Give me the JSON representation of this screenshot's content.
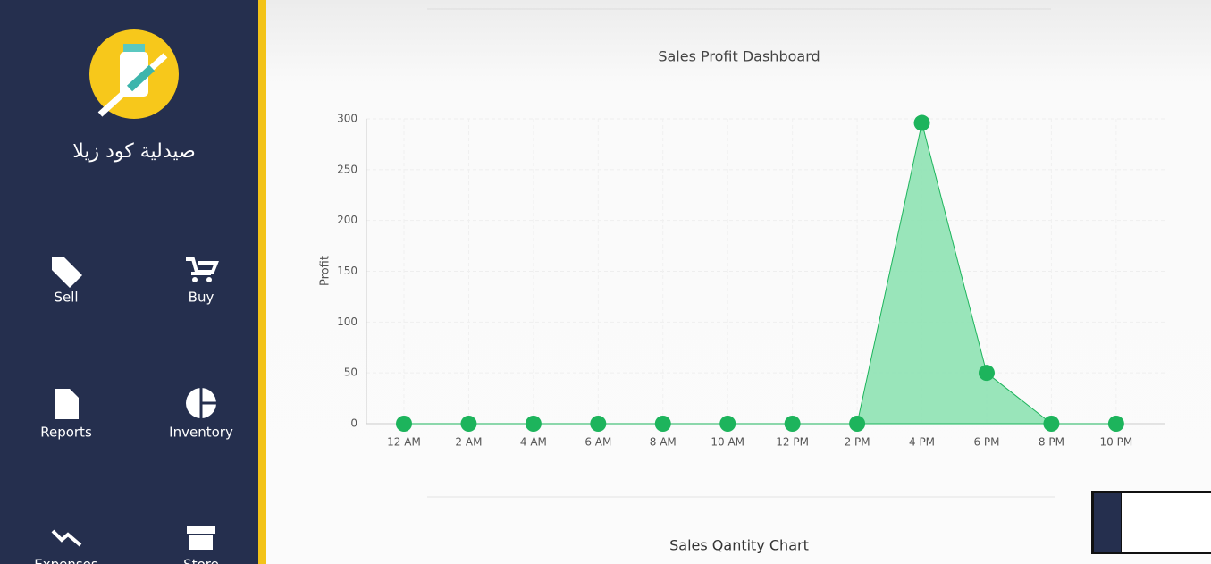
{
  "sidebar": {
    "pharmacy_name": "صيدلية كود زيلا",
    "menu": [
      "Sell",
      "Buy",
      "Reports",
      "Inventory",
      "Expenses",
      "Store"
    ]
  },
  "chart_data": {
    "type": "area",
    "title": "Sales Profit Dashboard",
    "y_label": "Profit",
    "categories": [
      "12 AM",
      "2 AM",
      "4 AM",
      "6 AM",
      "8 AM",
      "10 AM",
      "12 PM",
      "2 PM",
      "4 PM",
      "6 PM",
      "8 PM",
      "10 PM"
    ],
    "values": [
      0,
      0,
      0,
      0,
      0,
      0,
      0,
      0,
      296,
      50,
      0,
      0
    ],
    "color": "#1db45c",
    "fill": "#8ee2b3",
    "ylim": [
      0,
      300
    ],
    "yticks": [
      0,
      50,
      100,
      150,
      200,
      250,
      300
    ],
    "grid": true
  },
  "next_chart_title": "Sales Qantity Chart"
}
